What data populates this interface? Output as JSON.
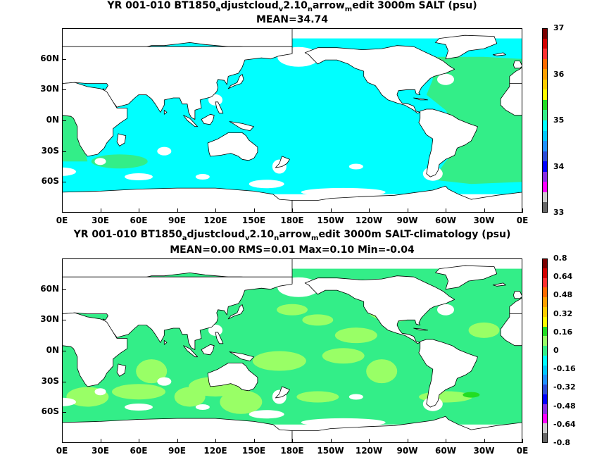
{
  "panels": [
    {
      "title_parts": [
        "YR 001-010 BT1850",
        "a",
        "djustcloud",
        "v",
        "2.10",
        "n",
        "arrow",
        "m",
        "edit 3000m SALT (psu)"
      ],
      "subtitle": "MEAN=34.74",
      "colorbar_labels": [
        "37",
        "36",
        "35",
        "34",
        "33"
      ],
      "colorbar_colors": [
        "#7a0000",
        "#d20000",
        "#ff3030",
        "#ff6a00",
        "#ff9f00",
        "#ffcc00",
        "#ffff00",
        "#22dd22",
        "#33ee88",
        "#00ffff",
        "#00c8ff",
        "#1e90ff",
        "#2a4bd7",
        "#0000ff",
        "#8a2be2",
        "#ff00ff",
        "#cccccc",
        "#666666"
      ],
      "field_main_color": "#00ffff",
      "field_high_color": "#33ee88"
    },
    {
      "title_parts": [
        "YR 001-010 BT1850",
        "a",
        "djustcloud",
        "v",
        "2.10",
        "n",
        "arrow",
        "m",
        "edit 3000m SALT-climatology (psu)"
      ],
      "subtitle": "MEAN=0.00   RMS=0.01   Max=0.10   Min=-0.04",
      "colorbar_labels": [
        "0.8",
        "0.64",
        "0.48",
        "0.32",
        "0.16",
        "0",
        "-0.16",
        "-0.32",
        "-0.48",
        "-0.64",
        "-0.8"
      ],
      "colorbar_colors": [
        "#7a0000",
        "#d20000",
        "#ff3030",
        "#ff6a00",
        "#ff9f00",
        "#ffcc00",
        "#ffff00",
        "#22dd22",
        "#99ff66",
        "#33ee88",
        "#00ffff",
        "#00c8ff",
        "#1e90ff",
        "#2a4bd7",
        "#0000ff",
        "#8a2be2",
        "#ff00ff",
        "#cccccc",
        "#666666"
      ],
      "field_main_color": "#33ee88",
      "field_high_color": "#99ff66"
    }
  ],
  "x_tick_labels": [
    "0E",
    "30E",
    "60E",
    "90E",
    "120E",
    "150E",
    "180E",
    "150W",
    "120W",
    "90W",
    "60W",
    "30W",
    "0E"
  ],
  "y_tick_labels": [
    "60N",
    "30N",
    "0N",
    "30S",
    "60S"
  ],
  "land_color": "#ffffff",
  "coastline_color": "#000000"
}
